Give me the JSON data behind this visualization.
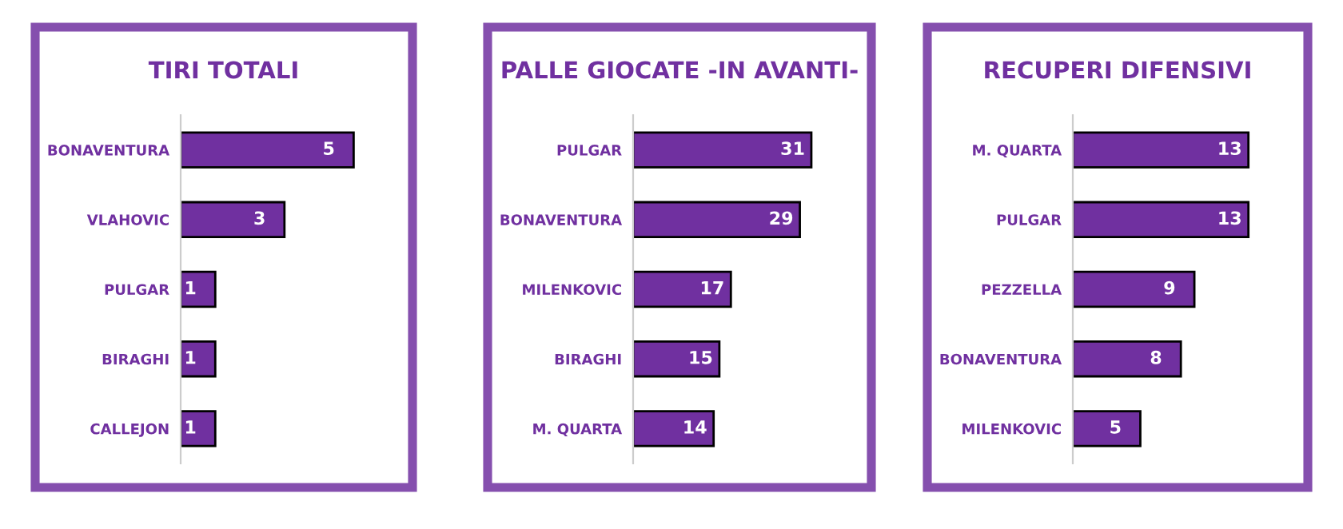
{
  "chart_data": [
    {
      "type": "bar",
      "orientation": "horizontal",
      "title": "TIRI TOTALI",
      "categories": [
        "BONAVENTURA",
        "VLAHOVIC",
        "PULGAR",
        "BIRAGHI",
        "CALLEJON"
      ],
      "values": [
        5,
        3,
        1,
        1,
        1
      ],
      "color": "#7030a0",
      "data_labels": true,
      "grid": false,
      "legend": false
    },
    {
      "type": "bar",
      "orientation": "horizontal",
      "title": "PALLE GIOCATE -IN AVANTI-",
      "categories": [
        "PULGAR",
        "BONAVENTURA",
        "MILENKOVIC",
        "BIRAGHI",
        "M. QUARTA"
      ],
      "values": [
        31,
        29,
        17,
        15,
        14
      ],
      "color": "#7030a0",
      "data_labels": true,
      "grid": false,
      "legend": false
    },
    {
      "type": "bar",
      "orientation": "horizontal",
      "title": "RECUPERI DIFENSIVI",
      "categories": [
        "M. QUARTA",
        "PULGAR",
        "PEZZELLA",
        "BONAVENTURA",
        "MILENKOVIC"
      ],
      "values": [
        13,
        13,
        9,
        8,
        5
      ],
      "color": "#7030a0",
      "data_labels": true,
      "grid": false,
      "legend": false
    }
  ]
}
